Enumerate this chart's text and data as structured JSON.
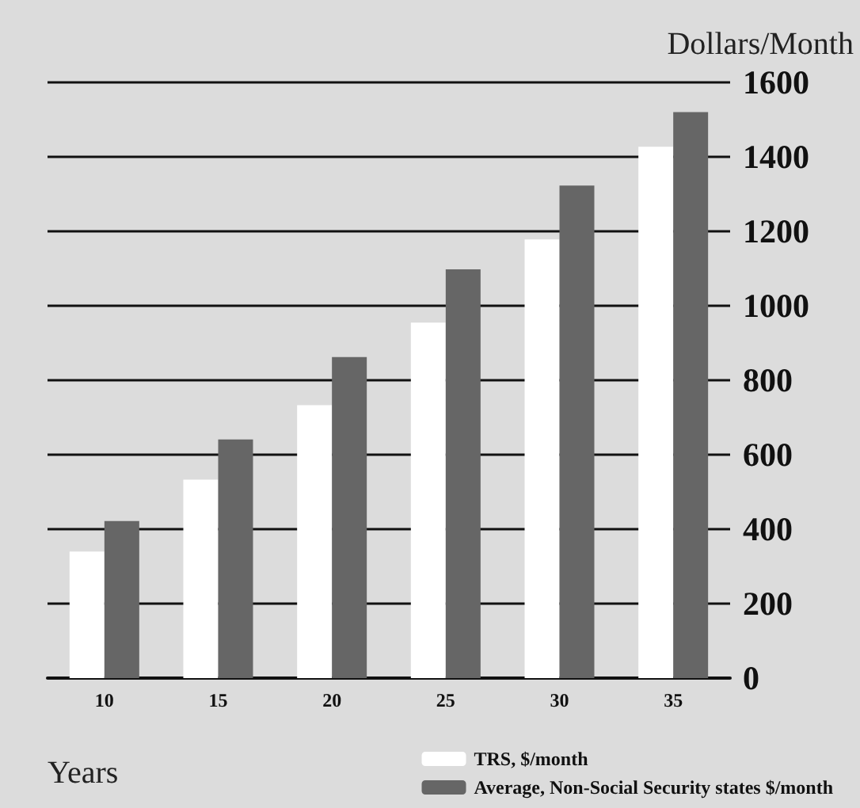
{
  "chart_data": {
    "type": "bar",
    "xlabel": "Years",
    "ylabel": "Dollars/Month",
    "categories": [
      "10",
      "15",
      "20",
      "25",
      "30",
      "35"
    ],
    "series": [
      {
        "name": "TRS, $/month",
        "color": "#ffffff",
        "values": [
          340,
          533,
          733,
          955,
          1178,
          1427
        ]
      },
      {
        "name": "Average, Non-Social Security states $/month",
        "color": "#666666",
        "values": [
          422,
          641,
          862,
          1098,
          1323,
          1520
        ]
      }
    ],
    "ylim": [
      0,
      1600
    ],
    "yticks": [
      0,
      200,
      400,
      600,
      800,
      1000,
      1200,
      1400,
      1600
    ],
    "grid": "y",
    "legend": "bottom right"
  }
}
